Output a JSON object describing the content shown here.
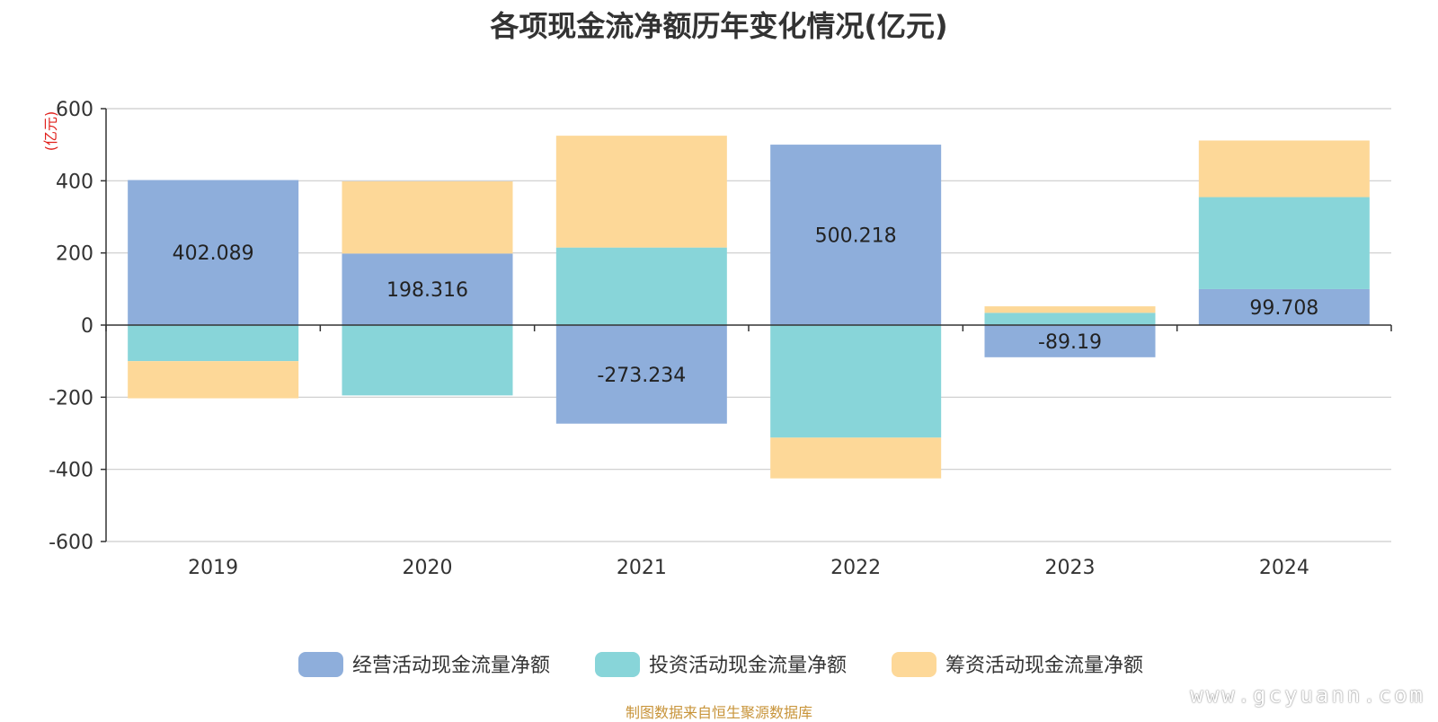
{
  "chart_data": {
    "type": "bar",
    "title": "各项现金流净额历年变化情况(亿元)",
    "ylabel": "(亿元)",
    "ylim": [
      -600,
      600
    ],
    "yticks": [
      600,
      400,
      200,
      0,
      -200,
      -400,
      -600
    ],
    "categories": [
      "2019",
      "2020",
      "2021",
      "2022",
      "2023",
      "2024"
    ],
    "stacked": true,
    "grid": true,
    "legend_position": "bottom",
    "series": [
      {
        "name": "经营活动现金流量净额",
        "color": "#8eaedb",
        "values": [
          402.089,
          198.316,
          -273.234,
          500.218,
          -89.19,
          99.708
        ],
        "labels": [
          "402.089",
          "198.316",
          "-273.234",
          "500.218",
          "-89.19",
          "99.708"
        ]
      },
      {
        "name": "投资活动现金流量净额",
        "color": "#88d5d9",
        "values": [
          -100,
          -195,
          215,
          -312,
          34,
          255
        ]
      },
      {
        "name": "筹资活动现金流量净额",
        "color": "#fdd898",
        "values": [
          -103,
          200,
          310,
          -113,
          18,
          157
        ]
      }
    ]
  },
  "footer": {
    "source": "制图数据来自恒生聚源数据库",
    "watermark": "www.gcyuann.com"
  }
}
